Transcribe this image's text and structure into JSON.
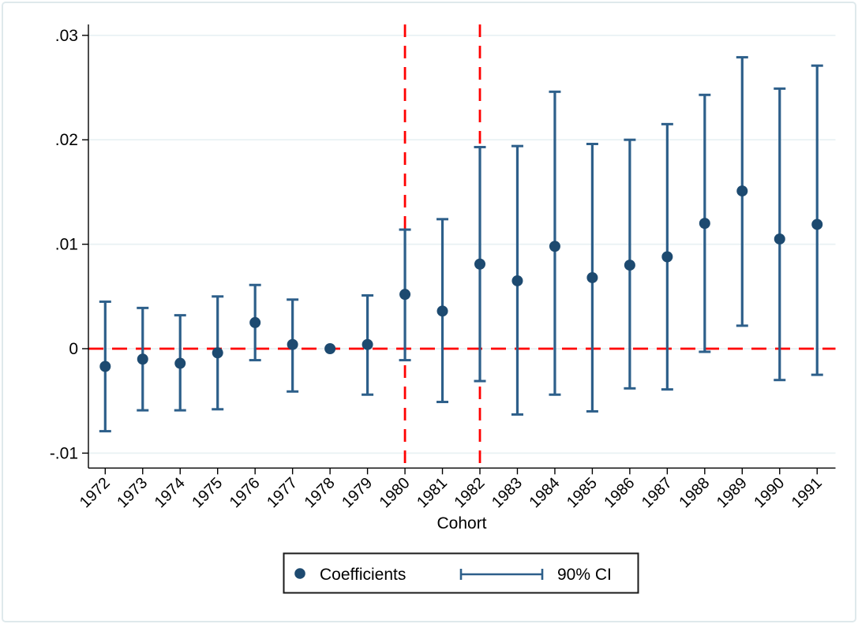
{
  "figure": {
    "xlabel": "Cohort",
    "legend": {
      "coef_label": "Coefficients",
      "ci_label": "90% CI"
    }
  },
  "colors": {
    "marker_navy": "#1d4a70",
    "ci_line_navy": "#2d5f8a",
    "reference_red": "#ff0000",
    "gridline": "#e8f1f3",
    "axis_black": "#000000",
    "figure_border": "#dfe9ec",
    "legend_border": "#1a1a1a",
    "background": "#ffffff"
  },
  "chart_data": {
    "type": "scatter",
    "subtype": "coefficient-plot-with-error-bars",
    "title": "",
    "xlabel": "Cohort",
    "ylabel": "",
    "x_categories": [
      "1972",
      "1973",
      "1974",
      "1975",
      "1976",
      "1977",
      "1978",
      "1979",
      "1980",
      "1981",
      "1982",
      "1983",
      "1984",
      "1985",
      "1986",
      "1987",
      "1988",
      "1989",
      "1990",
      "1991"
    ],
    "y_ticks": [
      {
        "value": 0.03,
        "label": ".03"
      },
      {
        "value": 0.02,
        "label": ".02"
      },
      {
        "value": 0.01,
        "label": ".01"
      },
      {
        "value": 0.0,
        "label": "0"
      },
      {
        "value": -0.01,
        "label": "-.01"
      }
    ],
    "ylim": [
      -0.0114,
      0.031
    ],
    "grid": true,
    "legend_position": "bottom-center",
    "reference_lines": [
      {
        "orientation": "horizontal",
        "value": 0,
        "style": "dashed",
        "color": "#ff0000"
      },
      {
        "orientation": "vertical",
        "value": "1980",
        "style": "dashed",
        "color": "#ff0000"
      },
      {
        "orientation": "vertical",
        "value": "1982",
        "style": "dashed",
        "color": "#ff0000"
      }
    ],
    "series": [
      {
        "name": "Coefficients",
        "role": "point-estimates",
        "marker": "circle"
      },
      {
        "name": "90% CI",
        "role": "confidence-intervals"
      }
    ],
    "points": [
      {
        "cohort": "1972",
        "coef": -0.0017,
        "ci_low": -0.0079,
        "ci_high": 0.0045
      },
      {
        "cohort": "1973",
        "coef": -0.001,
        "ci_low": -0.0059,
        "ci_high": 0.0039
      },
      {
        "cohort": "1974",
        "coef": -0.0014,
        "ci_low": -0.0059,
        "ci_high": 0.0032
      },
      {
        "cohort": "1975",
        "coef": -0.0004,
        "ci_low": -0.0058,
        "ci_high": 0.005
      },
      {
        "cohort": "1976",
        "coef": 0.0025,
        "ci_low": -0.0011,
        "ci_high": 0.0061
      },
      {
        "cohort": "1977",
        "coef": 0.0004,
        "ci_low": -0.0041,
        "ci_high": 0.0047
      },
      {
        "cohort": "1978",
        "coef": 0.0,
        "ci_low": 0.0,
        "ci_high": 0.0,
        "reference": true
      },
      {
        "cohort": "1979",
        "coef": 0.0004,
        "ci_low": -0.0044,
        "ci_high": 0.0051
      },
      {
        "cohort": "1980",
        "coef": 0.0052,
        "ci_low": -0.0011,
        "ci_high": 0.0114
      },
      {
        "cohort": "1981",
        "coef": 0.0036,
        "ci_low": -0.0051,
        "ci_high": 0.0124
      },
      {
        "cohort": "1982",
        "coef": 0.0081,
        "ci_low": -0.0031,
        "ci_high": 0.0193
      },
      {
        "cohort": "1983",
        "coef": 0.0065,
        "ci_low": -0.0063,
        "ci_high": 0.0194
      },
      {
        "cohort": "1984",
        "coef": 0.0098,
        "ci_low": -0.0044,
        "ci_high": 0.0246
      },
      {
        "cohort": "1985",
        "coef": 0.0068,
        "ci_low": -0.006,
        "ci_high": 0.0196
      },
      {
        "cohort": "1986",
        "coef": 0.008,
        "ci_low": -0.0038,
        "ci_high": 0.02
      },
      {
        "cohort": "1987",
        "coef": 0.0088,
        "ci_low": -0.0039,
        "ci_high": 0.0215
      },
      {
        "cohort": "1988",
        "coef": 0.012,
        "ci_low": -0.0003,
        "ci_high": 0.0243
      },
      {
        "cohort": "1989",
        "coef": 0.0151,
        "ci_low": 0.0022,
        "ci_high": 0.0279
      },
      {
        "cohort": "1990",
        "coef": 0.0105,
        "ci_low": -0.003,
        "ci_high": 0.0249
      },
      {
        "cohort": "1991",
        "coef": 0.0119,
        "ci_low": -0.0025,
        "ci_high": 0.0271
      }
    ]
  }
}
